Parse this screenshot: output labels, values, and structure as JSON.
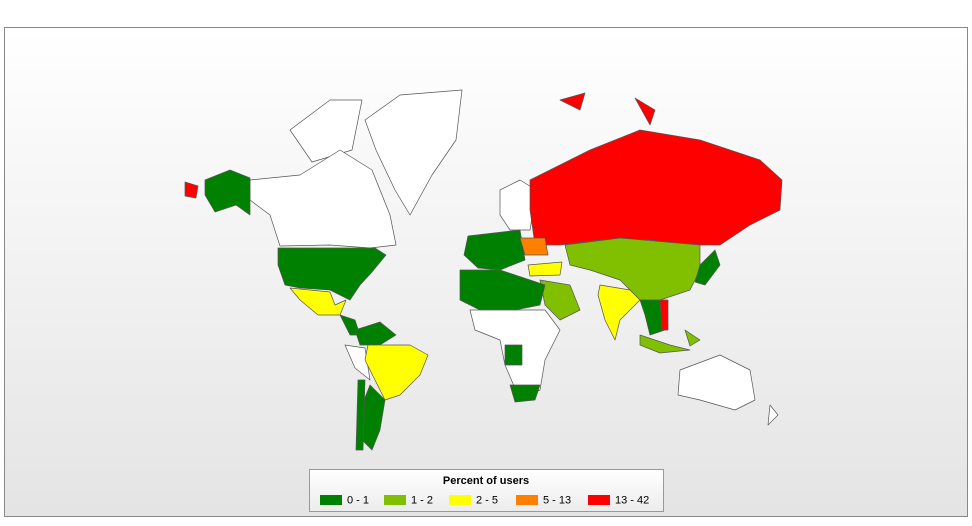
{
  "legend": {
    "title": "Percent of users",
    "items": [
      {
        "label": "0 - 1",
        "color": "#008000"
      },
      {
        "label": "1 - 2",
        "color": "#80c000"
      },
      {
        "label": "2 - 5",
        "color": "#ffff00"
      },
      {
        "label": "5 - 13",
        "color": "#ff8000"
      },
      {
        "label": "13 - 42",
        "color": "#ff0000"
      }
    ]
  }
}
